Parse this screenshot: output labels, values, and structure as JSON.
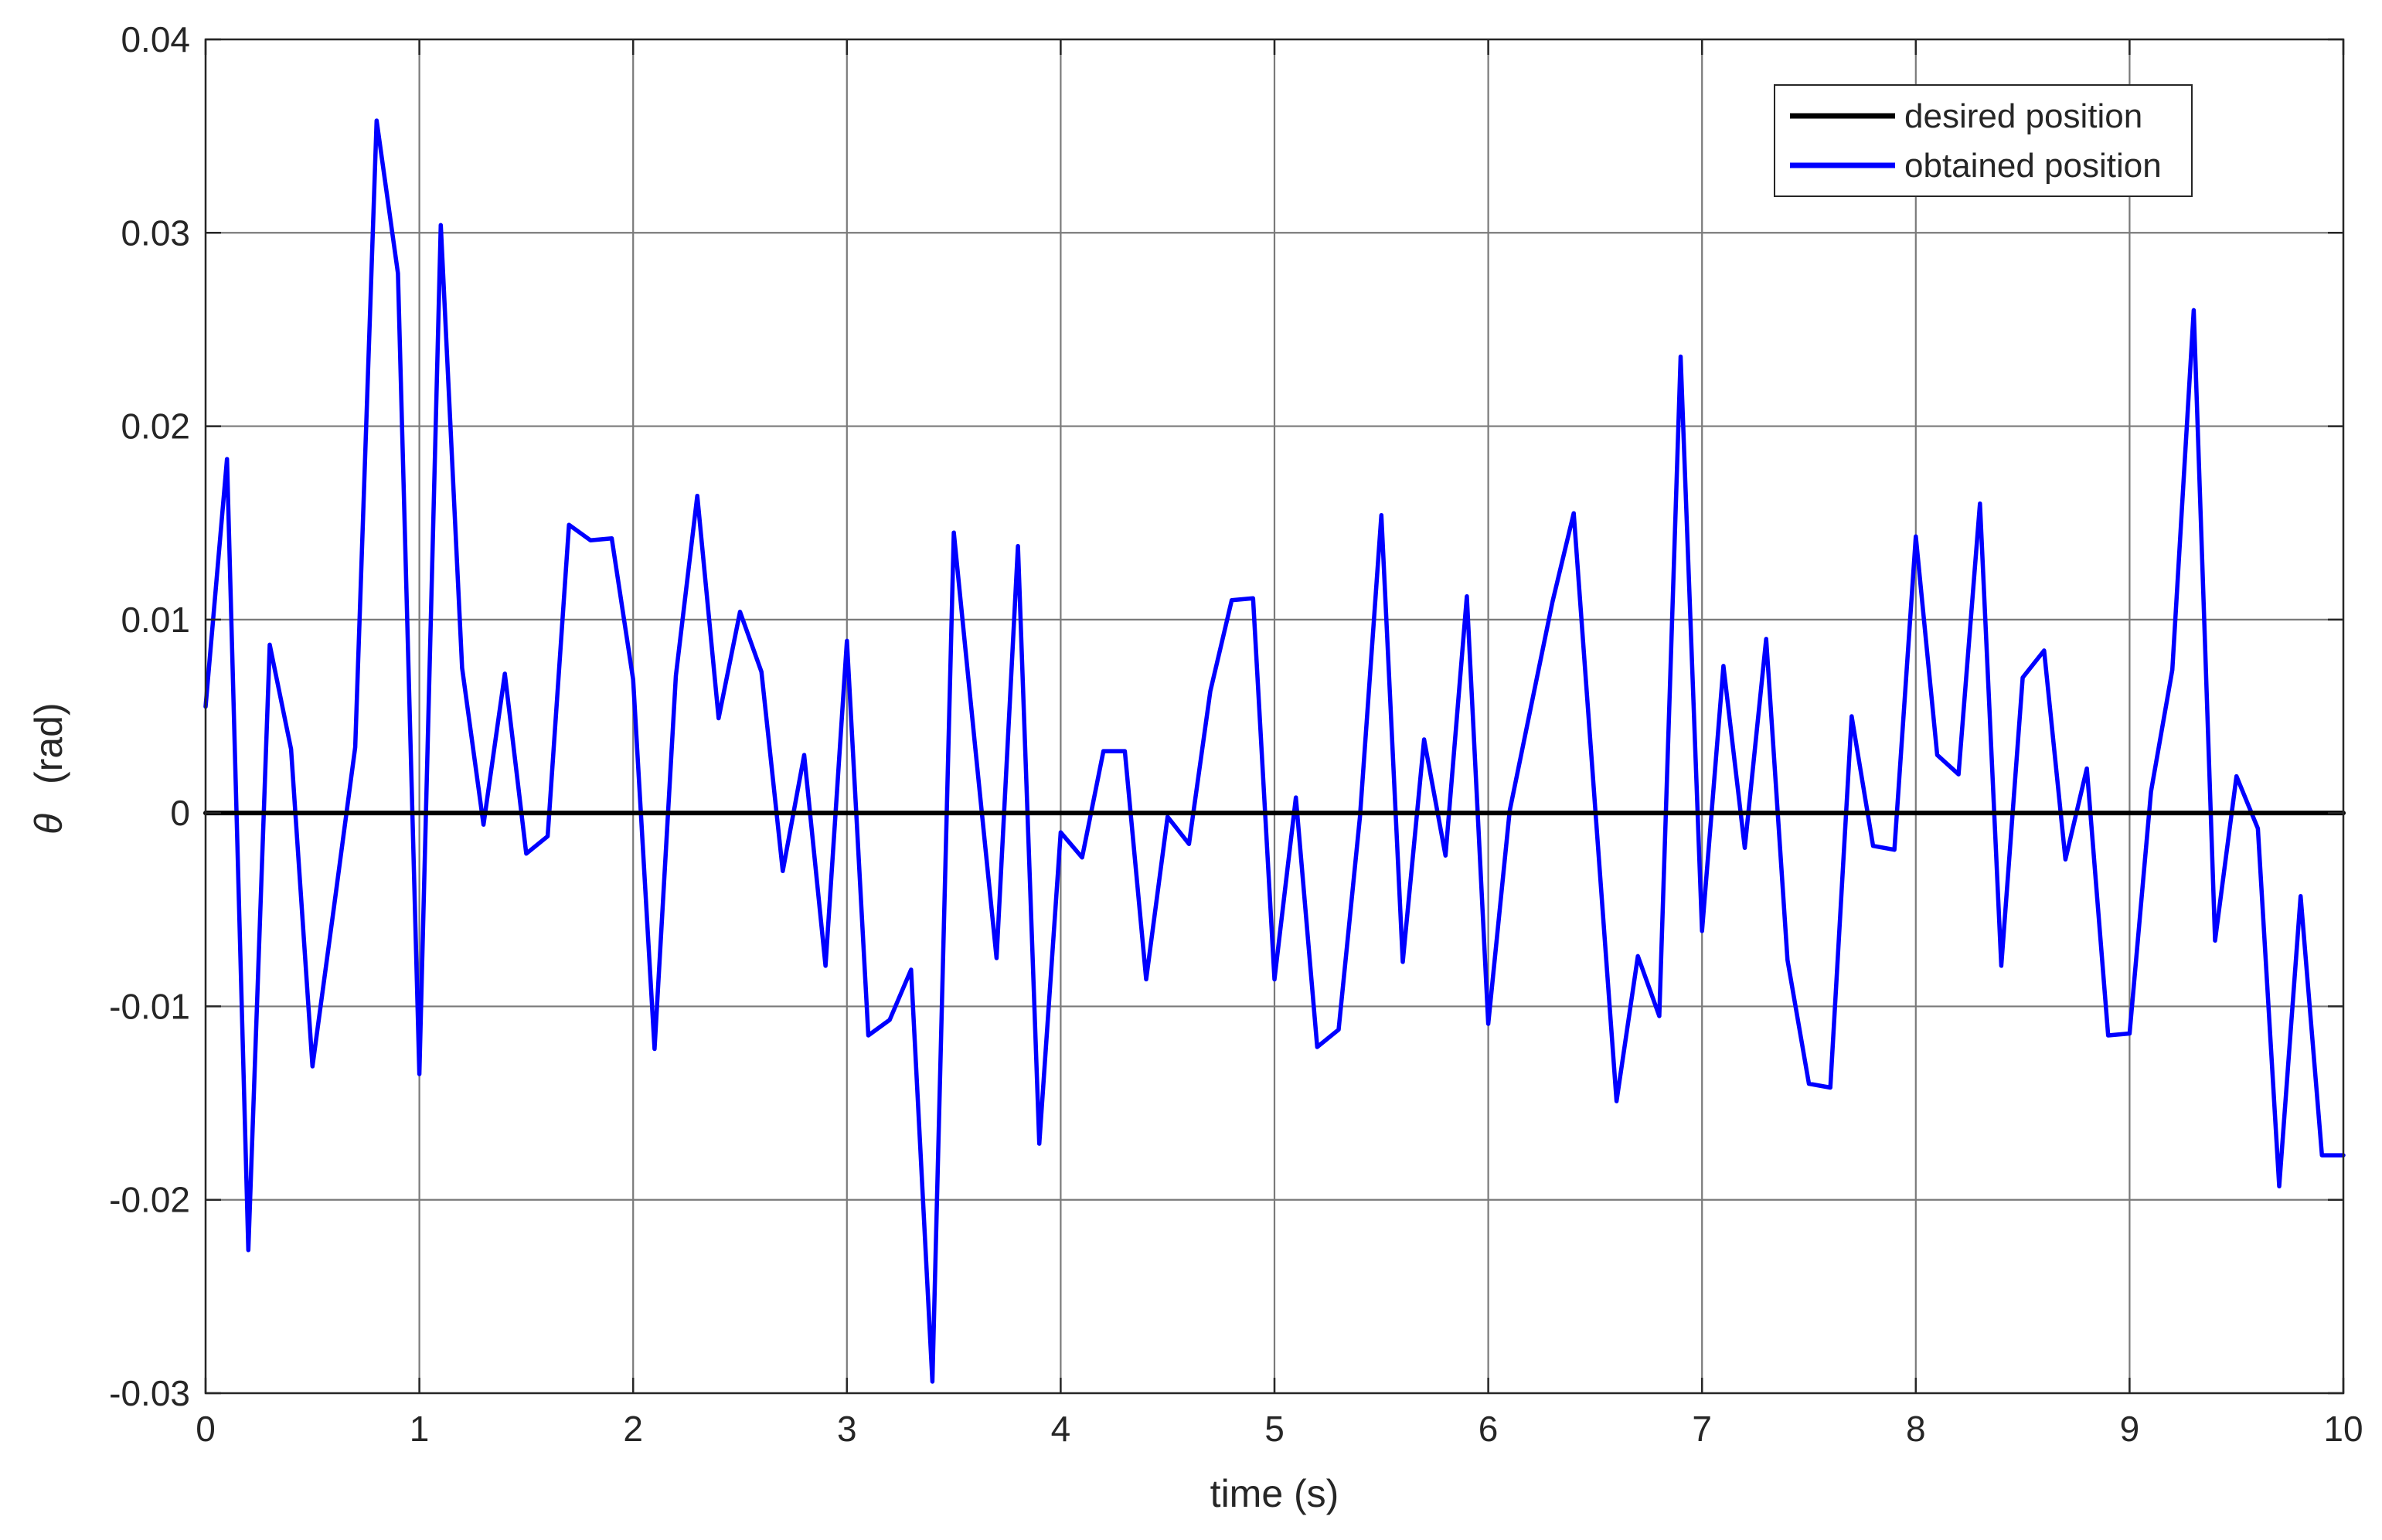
{
  "chart_data": {
    "type": "line",
    "xlabel": "time (s)",
    "ylabel_symbol": "θ",
    "ylabel_unit": "(rad)",
    "xlim": [
      0,
      10
    ],
    "ylim": [
      -0.03,
      0.04
    ],
    "xticks": [
      0,
      1,
      2,
      3,
      4,
      5,
      6,
      7,
      8,
      9,
      10
    ],
    "xtick_labels": [
      "0",
      "1",
      "2",
      "3",
      "4",
      "5",
      "6",
      "7",
      "8",
      "9",
      "10"
    ],
    "yticks": [
      -0.03,
      -0.02,
      -0.01,
      0,
      0.01,
      0.02,
      0.03,
      0.04
    ],
    "ytick_labels": [
      "-0.03",
      "-0.02",
      "-0.01",
      "0",
      "0.01",
      "0.02",
      "0.03",
      "0.04"
    ],
    "grid": true,
    "legend_position": "top-right",
    "colors": {
      "desired": "#000000",
      "obtained": "#0000ff"
    },
    "series": [
      {
        "name": "desired position",
        "color": "#000000",
        "x": [
          0,
          10
        ],
        "y": [
          0,
          0
        ]
      },
      {
        "name": "obtained position",
        "color": "#0000ff",
        "x": [
          0,
          0.1,
          0.2,
          0.3,
          0.4,
          0.5,
          0.6,
          0.7,
          0.8,
          0.9,
          1.0,
          1.1,
          1.2,
          1.3,
          1.4,
          1.5,
          1.6,
          1.7,
          1.8,
          1.9,
          2.0,
          2.1,
          2.2,
          2.3,
          2.4,
          2.5,
          2.6,
          2.7,
          2.8,
          2.9,
          3.0,
          3.1,
          3.2,
          3.3,
          3.4,
          3.5,
          3.6,
          3.7,
          3.8,
          3.9,
          4.0,
          4.1,
          4.2,
          4.3,
          4.4,
          4.5,
          4.6,
          4.7,
          4.8,
          4.9,
          5.0,
          5.1,
          5.2,
          5.3,
          5.4,
          5.5,
          5.6,
          5.7,
          5.8,
          5.9,
          6.0,
          6.1,
          6.2,
          6.3,
          6.4,
          6.5,
          6.6,
          6.7,
          6.8,
          6.9,
          7.0,
          7.1,
          7.2,
          7.3,
          7.4,
          7.5,
          7.6,
          7.7,
          7.8,
          7.9,
          8.0,
          8.1,
          8.2,
          8.3,
          8.4,
          8.5,
          8.6,
          8.7,
          8.8,
          8.9,
          9.0,
          9.1,
          9.2,
          9.3,
          9.4,
          9.5,
          9.6,
          9.7,
          9.8,
          9.9,
          10.0
        ],
        "y": [
          0.0055,
          0.0183,
          -0.0226,
          0.0087,
          0.0033,
          -0.0131,
          -0.0049,
          0.0034,
          0.0358,
          0.0279,
          -0.0135,
          0.0304,
          0.0075,
          -0.0006,
          0.0072,
          -0.0021,
          -0.0012,
          0.0149,
          0.0141,
          0.0142,
          0.0069,
          -0.0122,
          0.0071,
          0.0164,
          0.0049,
          0.0104,
          0.0073,
          -0.003,
          0.003,
          -0.0079,
          0.0089,
          -0.0115,
          -0.0107,
          -0.0081,
          -0.0294,
          0.0145,
          0.0034,
          -0.0075,
          0.0138,
          -0.0171,
          -0.001,
          -0.0023,
          0.0032,
          0.0032,
          -0.0086,
          -0.0002,
          -0.0016,
          0.0063,
          0.011,
          0.0111,
          -0.0086,
          0.0008,
          -0.0121,
          -0.0112,
          -0.0002,
          0.0154,
          -0.0077,
          0.0038,
          -0.0022,
          0.0112,
          -0.0109,
          0.0001,
          0.0055,
          0.0109,
          0.0155,
          0.0003,
          -0.0149,
          -0.0074,
          -0.0105,
          0.0236,
          -0.0061,
          0.0076,
          -0.0018,
          0.009,
          -0.0076,
          -0.014,
          -0.0142,
          0.005,
          -0.0017,
          -0.0019,
          0.0143,
          0.003,
          0.002,
          0.016,
          -0.0079,
          0.007,
          0.0084,
          -0.0024,
          0.0023,
          -0.0115,
          -0.0114,
          0.0011,
          0.0074,
          0.026,
          -0.0066,
          0.0019,
          -0.0008,
          -0.0193,
          -0.0043,
          -0.0177,
          -0.0177
        ]
      }
    ]
  }
}
